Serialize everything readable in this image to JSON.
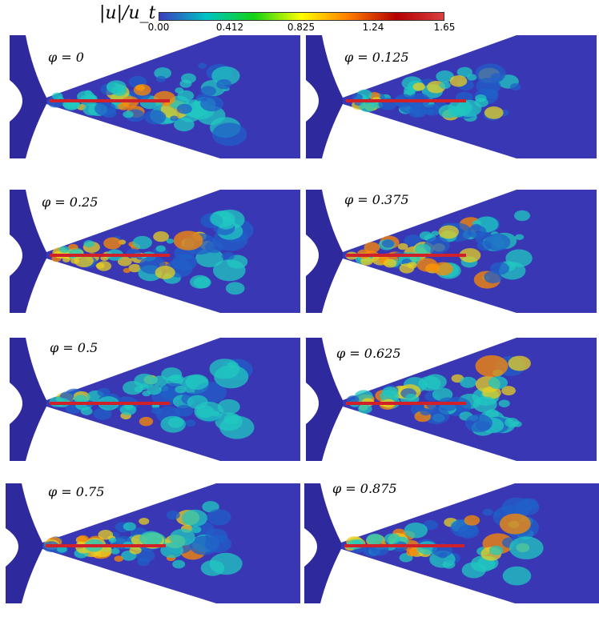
{
  "colorbar": {
    "title": "|u|/u_t",
    "ticks": [
      "0.00",
      "0.412",
      "0.825",
      "1.24",
      "1.65"
    ],
    "stops": [
      "#3b3cc0",
      "#00c4c4",
      "#14d214",
      "#ffff00",
      "#ff7a00",
      "#b40000",
      "#d94040"
    ]
  },
  "panels": [
    {
      "label": "φ = 0",
      "jet": 0.25,
      "wake": 0.45
    },
    {
      "label": "φ = 0.125",
      "jet": 0.3,
      "wake": 0.3
    },
    {
      "label": "φ = 0.25",
      "jet": 0.85,
      "wake": 0.55
    },
    {
      "label": "φ = 0.375",
      "jet": 0.8,
      "wake": 0.4
    },
    {
      "label": "φ = 0.5",
      "jet": 0.2,
      "wake": 0.55
    },
    {
      "label": "φ = 0.625",
      "jet": 0.55,
      "wake": 0.35
    },
    {
      "label": "φ = 0.75",
      "jet": 0.75,
      "wake": 0.45
    },
    {
      "label": "φ = 0.875",
      "jet": 0.7,
      "wake": 0.5
    }
  ],
  "colors": {
    "background_flow": "#3a37b4",
    "jet_core": "#e8d020",
    "plate": "#d0202a",
    "shroud": "#2e2a9e"
  }
}
